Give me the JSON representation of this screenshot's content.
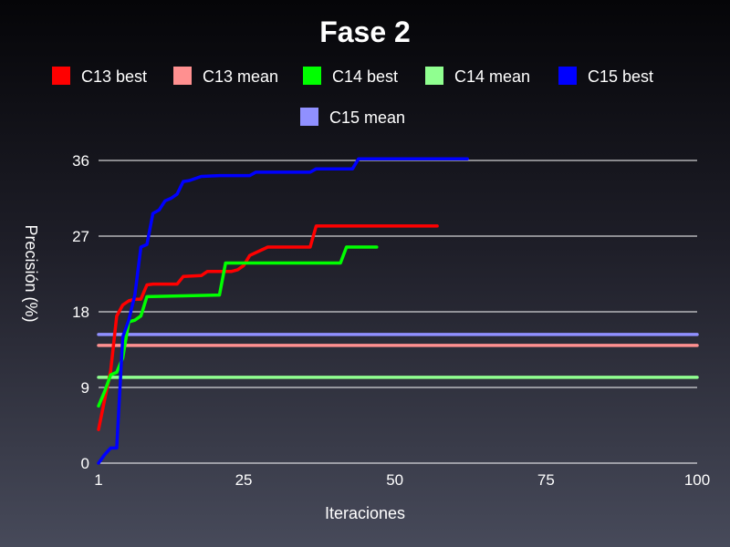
{
  "chart_data": {
    "type": "line",
    "title": "Fase 2",
    "xlabel": "Iteraciones",
    "ylabel": "Precisión (%)",
    "xlim": [
      1,
      100
    ],
    "ylim": [
      0,
      36
    ],
    "xticks": [
      1,
      25,
      50,
      75,
      100
    ],
    "yticks": [
      0,
      9,
      18,
      27,
      36
    ],
    "grid": "horizontal",
    "legend": "top",
    "series": [
      {
        "name": "C13 best",
        "color": "#ff0000",
        "x": [
          1,
          2,
          3,
          4,
          5,
          6,
          7,
          8,
          9,
          10,
          14,
          15,
          18,
          19,
          23,
          24,
          25,
          26,
          29,
          36,
          37,
          57
        ],
        "y": [
          4,
          7.5,
          11,
          17.5,
          18.8,
          19.3,
          19.5,
          19.5,
          21.2,
          21.3,
          21.3,
          22.2,
          22.3,
          22.8,
          22.8,
          23,
          23.5,
          24.7,
          25.7,
          25.7,
          28.2,
          28.2
        ]
      },
      {
        "name": "C13 mean",
        "color": "#ff9090",
        "x": [
          1,
          100
        ],
        "y": [
          14,
          14
        ]
      },
      {
        "name": "C14 best",
        "color": "#00ff00",
        "x": [
          1,
          2,
          3,
          4,
          5,
          6,
          7,
          8,
          9,
          21,
          22,
          41,
          42,
          47
        ],
        "y": [
          6.8,
          8.5,
          10.5,
          10.8,
          12.5,
          16.8,
          17,
          17.5,
          19.8,
          20,
          23.8,
          23.8,
          25.7,
          25.7
        ]
      },
      {
        "name": "C14 mean",
        "color": "#90ff90",
        "x": [
          1,
          100
        ],
        "y": [
          10.2,
          10.2
        ]
      },
      {
        "name": "C15 best",
        "color": "#0000ff",
        "x": [
          1,
          2,
          3,
          4,
          5,
          6,
          7,
          8,
          9,
          10,
          11,
          12,
          13,
          14,
          15,
          16,
          18,
          21,
          26,
          27,
          36,
          37,
          43,
          44,
          62
        ],
        "y": [
          0,
          1,
          1.8,
          1.8,
          15,
          17,
          20,
          25.7,
          26,
          29.7,
          30.1,
          31.2,
          31.5,
          32,
          33.5,
          33.6,
          34.1,
          34.2,
          34.2,
          34.6,
          34.6,
          35,
          35,
          36.2,
          36.2
        ]
      },
      {
        "name": "C15 mean",
        "color": "#9090ff",
        "x": [
          1,
          100
        ],
        "y": [
          15.3,
          15.3
        ]
      }
    ]
  }
}
